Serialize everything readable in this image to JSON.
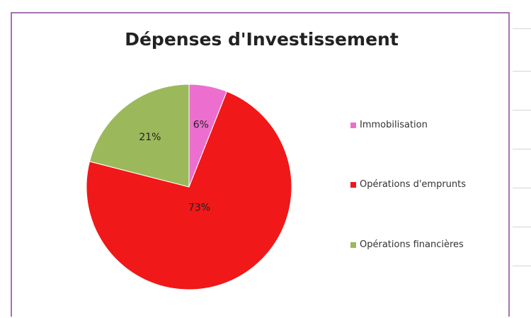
{
  "chart_data": {
    "type": "pie",
    "title": "Dépenses d'Investissement",
    "categories": [
      "Immobilisation",
      "Opérations d'emprunts",
      "Opérations financières"
    ],
    "values": [
      6,
      73,
      21
    ],
    "data_labels": [
      "6%",
      "73%",
      "21%"
    ],
    "colors": [
      "#ec6fd0",
      "#f01818",
      "#9bb95b"
    ],
    "legend_position": "right",
    "start_angle": "12 o'clock, clockwise"
  }
}
